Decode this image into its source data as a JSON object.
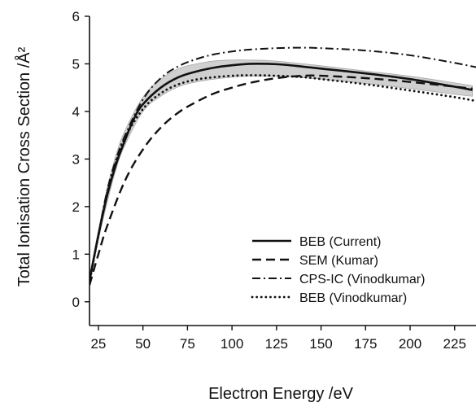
{
  "chart_data": {
    "type": "line",
    "title": "",
    "xlabel": "Electron Energy /eV",
    "ylabel": "Total Ionisation Cross Section /Å²",
    "xlim": [
      20,
      237
    ],
    "ylim": [
      -0.5,
      6
    ],
    "x_ticks": [
      25,
      50,
      75,
      100,
      125,
      150,
      175,
      200,
      225
    ],
    "y_ticks": [
      0,
      1,
      2,
      3,
      4,
      5,
      6
    ],
    "legend_position": "bottom-right",
    "band": {
      "series": "BEB (Current)",
      "x": [
        20,
        25,
        30,
        35,
        40,
        50,
        60,
        70,
        80,
        90,
        100,
        110,
        120,
        130,
        140,
        150,
        175,
        200,
        225,
        235
      ],
      "upper": [
        0.5,
        1.5,
        2.4,
        3.1,
        3.6,
        4.3,
        4.68,
        4.9,
        5.0,
        5.06,
        5.08,
        5.08,
        5.07,
        5.04,
        5.0,
        4.96,
        4.85,
        4.74,
        4.6,
        4.54
      ],
      "lower": [
        0.4,
        1.3,
        2.1,
        2.8,
        3.3,
        4.0,
        4.32,
        4.52,
        4.62,
        4.68,
        4.72,
        4.74,
        4.74,
        4.73,
        4.71,
        4.68,
        4.59,
        4.48,
        4.36,
        4.32
      ]
    },
    "series": [
      {
        "name": "BEB (Current)",
        "style": "solid",
        "x": [
          20,
          25,
          30,
          35,
          40,
          45,
          50,
          60,
          70,
          80,
          90,
          100,
          110,
          120,
          130,
          140,
          150,
          175,
          200,
          225,
          235
        ],
        "y": [
          0.45,
          1.4,
          2.25,
          2.9,
          3.4,
          3.85,
          4.15,
          4.5,
          4.72,
          4.84,
          4.92,
          4.97,
          5.0,
          5.0,
          4.98,
          4.94,
          4.9,
          4.8,
          4.68,
          4.52,
          4.45
        ]
      },
      {
        "name": "SEM (Kumar)",
        "style": "dashed",
        "x": [
          20,
          25,
          30,
          40,
          50,
          60,
          70,
          80,
          90,
          100,
          110,
          125,
          140,
          150,
          175,
          200,
          225,
          235
        ],
        "y": [
          0.35,
          1.0,
          1.6,
          2.55,
          3.2,
          3.66,
          3.98,
          4.2,
          4.38,
          4.5,
          4.6,
          4.7,
          4.75,
          4.75,
          4.7,
          4.62,
          4.52,
          4.48
        ]
      },
      {
        "name": "CPS-IC (Vinodkumar)",
        "style": "dashdot",
        "x": [
          20,
          25,
          30,
          35,
          40,
          50,
          60,
          70,
          80,
          90,
          100,
          110,
          125,
          140,
          150,
          175,
          200,
          225,
          237
        ],
        "y": [
          0.4,
          1.4,
          2.35,
          3.0,
          3.5,
          4.25,
          4.7,
          4.95,
          5.1,
          5.2,
          5.26,
          5.3,
          5.33,
          5.34,
          5.33,
          5.28,
          5.18,
          5.02,
          4.93
        ]
      },
      {
        "name": "BEB (Vinodkumar)",
        "style": "dotted",
        "x": [
          20,
          25,
          30,
          35,
          40,
          50,
          60,
          70,
          80,
          90,
          100,
          110,
          125,
          140,
          150,
          175,
          200,
          225,
          237
        ],
        "y": [
          0.4,
          1.4,
          2.3,
          2.95,
          3.45,
          4.05,
          4.38,
          4.57,
          4.67,
          4.72,
          4.75,
          4.76,
          4.75,
          4.72,
          4.68,
          4.57,
          4.44,
          4.3,
          4.22
        ]
      }
    ]
  }
}
